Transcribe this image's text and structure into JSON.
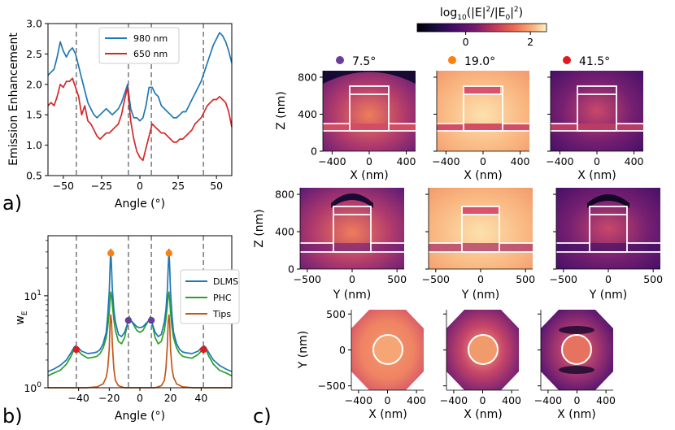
{
  "panel_labels": [
    "a)",
    "b)",
    "c)"
  ],
  "colors": {
    "blue": "#1f77b4",
    "red": "#d62728",
    "green": "#2ca02c",
    "brown": "#c2571a",
    "orange": "#ff7f0e",
    "purple": "#6a3d9a",
    "dot_red": "#e31a1c",
    "grey": "#808080"
  },
  "chart_data": [
    {
      "id": "a",
      "type": "line",
      "xlabel": "Angle (°)",
      "ylabel": "Emission Enhancement",
      "xlim": [
        -60,
        60
      ],
      "ylim": [
        0.5,
        3.0
      ],
      "xticks": [
        -50,
        -25,
        0,
        25,
        50
      ],
      "xtick_labels": [
        "−50",
        "−25",
        "0",
        "25",
        "50"
      ],
      "yticks": [
        0.5,
        1.0,
        1.5,
        2.0,
        2.5,
        3.0
      ],
      "ytick_labels": [
        "0.5",
        "1.0",
        "1.5",
        "2.0",
        "2.5",
        "3.0"
      ],
      "vlines": [
        -41.5,
        -7.5,
        7.5,
        41.5
      ],
      "legend": [
        "980 nm",
        "650 nm"
      ],
      "series": [
        {
          "name": "980 nm",
          "color": "#1f77b4",
          "x": [
            -60,
            -58,
            -56,
            -54,
            -52,
            -50,
            -48,
            -46,
            -44,
            -42,
            -40,
            -38,
            -36,
            -34,
            -32,
            -30,
            -28,
            -26,
            -24,
            -22,
            -20,
            -18,
            -16,
            -14,
            -12,
            -10,
            -8,
            -6,
            -4,
            -2,
            0,
            2,
            4,
            6,
            8,
            10,
            12,
            14,
            16,
            18,
            20,
            22,
            24,
            26,
            28,
            30,
            32,
            34,
            36,
            38,
            40,
            42,
            44,
            46,
            48,
            50,
            52,
            54,
            56,
            58,
            60
          ],
          "y": [
            2.15,
            2.2,
            2.25,
            2.45,
            2.7,
            2.55,
            2.45,
            2.55,
            2.6,
            2.5,
            2.3,
            2.1,
            1.9,
            1.7,
            1.6,
            1.5,
            1.45,
            1.5,
            1.55,
            1.6,
            1.55,
            1.5,
            1.55,
            1.6,
            1.7,
            1.85,
            2.0,
            1.6,
            1.45,
            1.45,
            1.4,
            1.45,
            1.65,
            1.95,
            1.95,
            1.85,
            1.8,
            1.65,
            1.6,
            1.55,
            1.5,
            1.45,
            1.45,
            1.5,
            1.55,
            1.55,
            1.65,
            1.75,
            1.85,
            1.95,
            2.05,
            2.2,
            2.35,
            2.5,
            2.65,
            2.75,
            2.85,
            2.8,
            2.7,
            2.55,
            2.35
          ]
        },
        {
          "name": "650 nm",
          "color": "#d62728",
          "x": [
            -60,
            -58,
            -56,
            -54,
            -52,
            -50,
            -48,
            -46,
            -44,
            -42,
            -40,
            -38,
            -36,
            -34,
            -32,
            -30,
            -28,
            -26,
            -24,
            -22,
            -20,
            -18,
            -16,
            -14,
            -12,
            -10,
            -8,
            -6,
            -4,
            -2,
            0,
            2,
            4,
            6,
            8,
            10,
            12,
            14,
            16,
            18,
            20,
            22,
            24,
            26,
            28,
            30,
            32,
            34,
            36,
            38,
            40,
            42,
            44,
            46,
            48,
            50,
            52,
            54,
            56,
            58,
            60
          ],
          "y": [
            1.65,
            1.7,
            1.65,
            1.8,
            2.0,
            1.95,
            2.05,
            2.05,
            2.1,
            1.95,
            1.8,
            1.5,
            1.65,
            1.4,
            1.35,
            1.25,
            1.15,
            1.1,
            1.15,
            1.2,
            1.2,
            1.25,
            1.3,
            1.35,
            1.5,
            1.75,
            1.95,
            1.4,
            1.1,
            0.9,
            0.8,
            0.75,
            0.95,
            1.15,
            1.35,
            1.3,
            1.25,
            1.2,
            1.2,
            1.15,
            1.1,
            1.05,
            1.05,
            1.1,
            1.1,
            1.15,
            1.2,
            1.25,
            1.35,
            1.4,
            1.45,
            1.55,
            1.65,
            1.7,
            1.75,
            1.75,
            1.8,
            1.75,
            1.7,
            1.55,
            1.3
          ]
        }
      ]
    },
    {
      "id": "b",
      "type": "line",
      "scale_y": "log",
      "xlabel": "Angle (°)",
      "ylabel": "w",
      "ylabel_sub": "E",
      "xlim": [
        -60,
        60
      ],
      "ylim": [
        1,
        45
      ],
      "xticks": [
        -40,
        -20,
        0,
        20,
        40
      ],
      "xtick_labels": [
        "−40",
        "−20",
        "0",
        "20",
        "40"
      ],
      "yticks": [
        1,
        10
      ],
      "ytick_base": "10",
      "ytick_exps": [
        "0",
        "1"
      ],
      "vlines": [
        -41.5,
        -7.5,
        7.5,
        41.5
      ],
      "legend": [
        "DLMS",
        "PHC",
        "Tips"
      ],
      "markers": [
        {
          "x": -19.0,
          "y": 29.0,
          "color": "#ff7f0e"
        },
        {
          "x": 19.0,
          "y": 29.0,
          "color": "#ff7f0e"
        },
        {
          "x": -7.5,
          "y": 5.4,
          "color": "#6a3d9a"
        },
        {
          "x": 7.5,
          "y": 5.4,
          "color": "#6a3d9a"
        },
        {
          "x": -41.5,
          "y": 2.6,
          "color": "#e31a1c"
        },
        {
          "x": 41.5,
          "y": 2.6,
          "color": "#e31a1c"
        }
      ],
      "series": [
        {
          "name": "DLMS",
          "color": "#1f77b4",
          "x": [
            0,
            2,
            4,
            6,
            7,
            8,
            10,
            12,
            14,
            16,
            17,
            18,
            18.5,
            19,
            19.5,
            20,
            21,
            22,
            24,
            26,
            28,
            30,
            34,
            38,
            40,
            41,
            42,
            43,
            45,
            48,
            52,
            56,
            60
          ],
          "y": [
            4.5,
            4.6,
            5.0,
            5.4,
            5.5,
            5.0,
            4.0,
            3.6,
            3.8,
            5.2,
            7.0,
            12.0,
            20.0,
            32.0,
            20.0,
            11.0,
            6.0,
            4.0,
            3.0,
            2.6,
            2.45,
            2.4,
            2.35,
            2.5,
            2.7,
            2.8,
            2.85,
            2.75,
            2.4,
            2.0,
            1.75,
            1.6,
            1.5
          ]
        },
        {
          "name": "PHC",
          "color": "#2ca02c",
          "x": [
            0,
            2,
            4,
            6,
            7,
            8,
            10,
            12,
            14,
            16,
            17,
            18,
            18.5,
            19,
            19.5,
            20,
            21,
            22,
            24,
            26,
            28,
            30,
            34,
            38,
            40,
            41,
            42,
            43,
            45,
            48,
            52,
            56,
            60
          ],
          "y": [
            4.0,
            4.2,
            4.8,
            5.5,
            6.0,
            5.0,
            3.5,
            3.0,
            3.2,
            4.2,
            5.5,
            8.0,
            10.0,
            11.0,
            9.0,
            6.5,
            4.5,
            3.5,
            2.7,
            2.35,
            2.2,
            2.15,
            2.1,
            2.3,
            2.5,
            2.6,
            2.7,
            2.6,
            2.2,
            1.8,
            1.55,
            1.45,
            1.35
          ]
        },
        {
          "name": "Tips",
          "color": "#c2571a",
          "x": [
            0,
            5,
            10,
            14,
            16,
            17,
            18,
            18.5,
            19,
            19.5,
            20,
            21,
            22,
            24,
            28,
            35,
            45,
            60
          ],
          "y": [
            1.0,
            1.0,
            1.0,
            1.05,
            1.2,
            1.6,
            3.0,
            5.2,
            6.2,
            5.0,
            2.6,
            1.6,
            1.3,
            1.1,
            1.02,
            1.0,
            1.0,
            1.0
          ]
        }
      ]
    },
    {
      "id": "c",
      "type": "heatmap",
      "colorbar_label": "log",
      "colorbar_label_sub": "10",
      "colorbar_label_rest": "(|E|",
      "colorbar_sup": "2",
      "colorbar_mid": "/|E",
      "colorbar_sub0": "0",
      "colorbar_sup2": "2",
      "colorbar_end": ")",
      "colorbar_range": [
        -1.5,
        2.5
      ],
      "colorbar_ticks": [
        0,
        2
      ],
      "colorbar_tick_labels": [
        "0",
        "2"
      ],
      "columns": [
        {
          "angle": "7.5°",
          "color": "#6a3d9a"
        },
        {
          "angle": "19.0°",
          "color": "#ff7f0e"
        },
        {
          "angle": "41.5°",
          "color": "#e31a1c"
        }
      ],
      "row1": {
        "ylabel": "Z (nm)",
        "xlabel": "X (nm)",
        "xticks": [
          -400,
          0,
          400
        ],
        "xtick_labels": [
          "−400",
          "0",
          "400"
        ],
        "yticks": [
          0,
          400,
          800
        ],
        "ytick_labels": [
          "0",
          "400",
          "800"
        ]
      },
      "row2": {
        "ylabel": "Z (nm)",
        "xlabel": "Y (nm)",
        "xticks": [
          -500,
          0,
          500
        ],
        "xtick_labels": [
          "−500",
          "0",
          "500"
        ],
        "yticks": [
          0,
          400,
          800
        ],
        "ytick_labels": [
          "0",
          "400",
          "800"
        ]
      },
      "row3": {
        "ylabel": "Y (nm)",
        "xlabel": "X (nm)",
        "xticks": [
          -400,
          0,
          400
        ],
        "xtick_labels": [
          "−400",
          "0",
          "400"
        ],
        "yticks": [
          -500,
          0,
          500
        ],
        "ytick_labels": [
          "−500",
          "0",
          "500"
        ]
      }
    }
  ]
}
